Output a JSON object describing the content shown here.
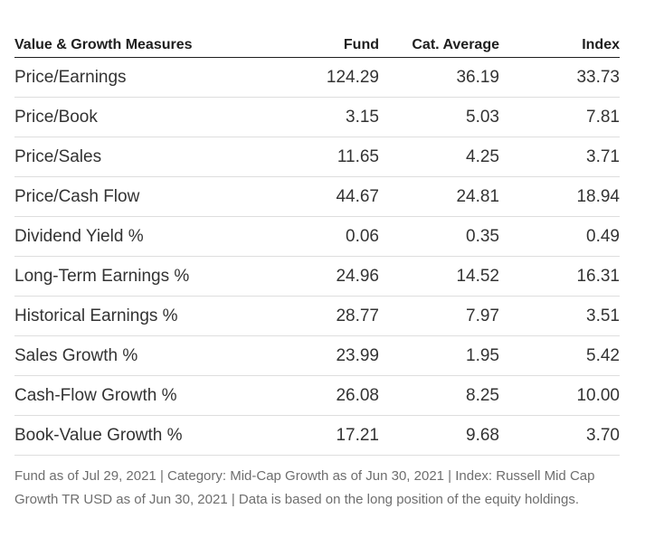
{
  "table": {
    "headers": [
      "Value & Growth Measures",
      "Fund",
      "Cat. Average",
      "Index"
    ],
    "rows": [
      {
        "measure": "Price/Earnings",
        "fund": "124.29",
        "cat_avg": "36.19",
        "index": "33.73"
      },
      {
        "measure": "Price/Book",
        "fund": "3.15",
        "cat_avg": "5.03",
        "index": "7.81"
      },
      {
        "measure": "Price/Sales",
        "fund": "11.65",
        "cat_avg": "4.25",
        "index": "3.71"
      },
      {
        "measure": "Price/Cash Flow",
        "fund": "44.67",
        "cat_avg": "24.81",
        "index": "18.94"
      },
      {
        "measure": "Dividend Yield %",
        "fund": "0.06",
        "cat_avg": "0.35",
        "index": "0.49"
      },
      {
        "measure": "Long-Term Earnings %",
        "fund": "24.96",
        "cat_avg": "14.52",
        "index": "16.31"
      },
      {
        "measure": "Historical Earnings %",
        "fund": "28.77",
        "cat_avg": "7.97",
        "index": "3.51"
      },
      {
        "measure": "Sales Growth %",
        "fund": "23.99",
        "cat_avg": "1.95",
        "index": "5.42"
      },
      {
        "measure": "Cash-Flow Growth %",
        "fund": "26.08",
        "cat_avg": "8.25",
        "index": "10.00"
      },
      {
        "measure": "Book-Value Growth %",
        "fund": "17.21",
        "cat_avg": "9.68",
        "index": "3.70"
      }
    ]
  },
  "footnote": "Fund as of Jul 29, 2021 | Category: Mid-Cap Growth as of Jun 30, 2021 | Index: Russell Mid Cap Growth TR USD as of Jun 30, 2021 | Data is based on the long position of the equity holdings."
}
